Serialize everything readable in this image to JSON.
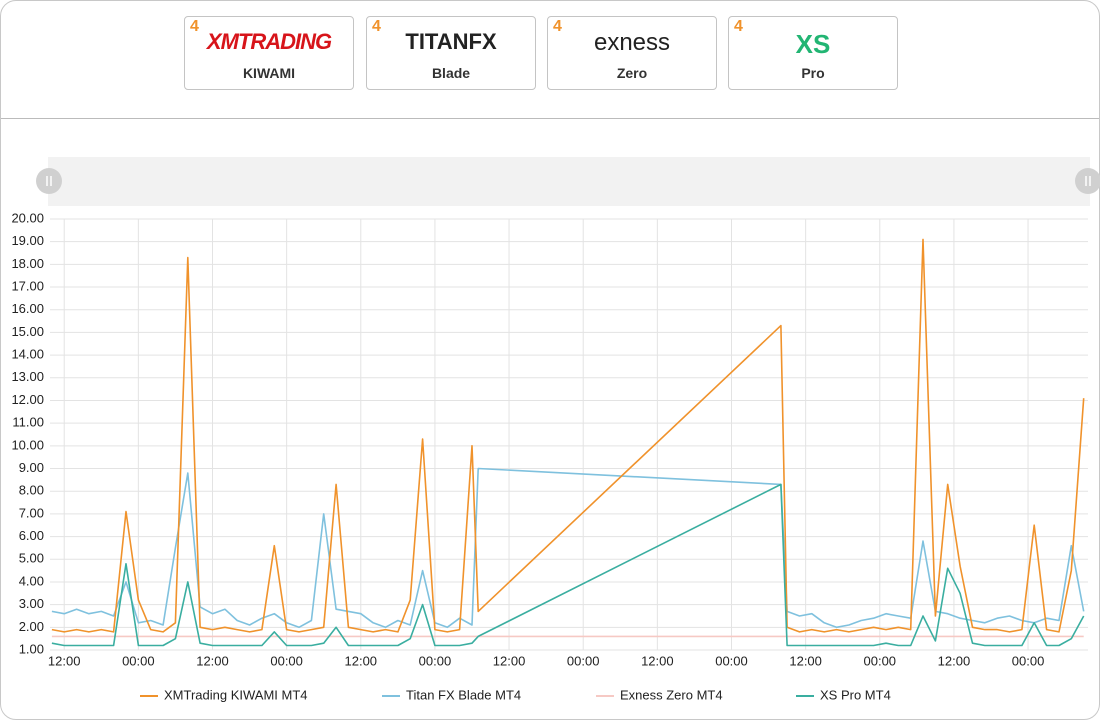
{
  "tabs": [
    {
      "badge": "4",
      "logo": "XMTRADING",
      "label": "KIWAMI"
    },
    {
      "badge": "4",
      "logo": "TITANFX",
      "label": "Blade"
    },
    {
      "badge": "4",
      "logo": "exness",
      "label": "Zero"
    },
    {
      "badge": "4",
      "logo": "XS",
      "label": "Pro"
    }
  ],
  "chart_data": {
    "type": "line",
    "x": [
      10,
      12,
      14,
      16,
      18,
      20,
      22,
      24,
      26,
      28,
      30,
      32,
      34,
      36,
      38,
      40,
      42,
      44,
      46,
      48,
      50,
      52,
      54,
      56,
      58,
      60,
      62,
      64,
      66,
      68,
      70,
      72,
      74,
      76,
      78,
      79,
      128,
      129,
      131,
      133,
      135,
      137,
      139,
      141,
      143,
      145,
      147,
      149,
      151,
      153,
      155,
      157,
      159,
      161,
      163,
      165,
      167,
      169,
      171,
      173,
      175,
      177
    ],
    "xlim": [
      9.7,
      177.7
    ],
    "xticks": [
      {
        "value": 12,
        "label": "12:00"
      },
      {
        "value": 24,
        "label": "00:00"
      },
      {
        "value": 36,
        "label": "12:00"
      },
      {
        "value": 48,
        "label": "00:00"
      },
      {
        "value": 60,
        "label": "12:00"
      },
      {
        "value": 72,
        "label": "00:00"
      },
      {
        "value": 84,
        "label": "12:00"
      },
      {
        "value": 96,
        "label": "00:00"
      },
      {
        "value": 108,
        "label": "12:00"
      },
      {
        "value": 120,
        "label": "00:00"
      },
      {
        "value": 132,
        "label": "12:00"
      },
      {
        "value": 144,
        "label": "00:00"
      },
      {
        "value": 156,
        "label": "12:00"
      },
      {
        "value": 168,
        "label": "00:00"
      }
    ],
    "ylim": [
      1,
      20
    ],
    "yticks": [
      {
        "value": 1,
        "label": "1.00"
      },
      {
        "value": 2,
        "label": "2.00"
      },
      {
        "value": 3,
        "label": "3.00"
      },
      {
        "value": 4,
        "label": "4.00"
      },
      {
        "value": 5,
        "label": "5.00"
      },
      {
        "value": 6,
        "label": "6.00"
      },
      {
        "value": 7,
        "label": "7.00"
      },
      {
        "value": 8,
        "label": "8.00"
      },
      {
        "value": 9,
        "label": "9.00"
      },
      {
        "value": 10,
        "label": "10.00"
      },
      {
        "value": 11,
        "label": "11.00"
      },
      {
        "value": 12,
        "label": "12.00"
      },
      {
        "value": 13,
        "label": "13.00"
      },
      {
        "value": 14,
        "label": "14.00"
      },
      {
        "value": 15,
        "label": "15.00"
      },
      {
        "value": 16,
        "label": "16.00"
      },
      {
        "value": 17,
        "label": "17.00"
      },
      {
        "value": 18,
        "label": "18.00"
      },
      {
        "value": 19,
        "label": "19.00"
      },
      {
        "value": 20,
        "label": "20.00"
      }
    ],
    "grid": true,
    "series": [
      {
        "name": "XMTrading KIWAMI MT4",
        "color": "#f0922b",
        "values": [
          1.9,
          1.8,
          1.9,
          1.8,
          1.9,
          1.8,
          7.1,
          3.2,
          1.9,
          1.8,
          2.2,
          18.3,
          2.0,
          1.9,
          2.0,
          1.9,
          1.8,
          1.9,
          5.6,
          1.9,
          1.8,
          1.9,
          2.0,
          8.3,
          2.0,
          1.9,
          1.8,
          1.9,
          1.8,
          3.2,
          10.3,
          1.9,
          1.8,
          1.9,
          10.0,
          2.7,
          15.3,
          2.0,
          1.8,
          1.9,
          1.8,
          1.9,
          1.8,
          1.9,
          2.0,
          1.9,
          2.0,
          1.9,
          19.1,
          2.5,
          8.3,
          4.7,
          2.0,
          1.9,
          1.9,
          1.8,
          1.9,
          6.5,
          1.9,
          1.8,
          4.5,
          12.1
        ]
      },
      {
        "name": "Titan FX Blade MT4",
        "color": "#7fc1de",
        "values": [
          2.7,
          2.6,
          2.8,
          2.6,
          2.7,
          2.5,
          4.0,
          2.2,
          2.3,
          2.1,
          5.5,
          8.8,
          2.9,
          2.6,
          2.8,
          2.3,
          2.1,
          2.4,
          2.6,
          2.2,
          2.0,
          2.3,
          7.0,
          2.8,
          2.7,
          2.6,
          2.2,
          2.0,
          2.3,
          2.1,
          4.5,
          2.2,
          2.0,
          2.4,
          2.1,
          9.0,
          8.3,
          2.7,
          2.5,
          2.6,
          2.2,
          2.0,
          2.1,
          2.3,
          2.4,
          2.6,
          2.5,
          2.4,
          5.8,
          2.7,
          2.6,
          2.4,
          2.3,
          2.2,
          2.4,
          2.5,
          2.3,
          2.2,
          2.4,
          2.3,
          5.6,
          2.7
        ]
      },
      {
        "name": "Exness Zero MT4",
        "color": "#f6c9c4",
        "values": [
          1.6,
          1.6,
          1.6,
          1.6,
          1.6,
          1.6,
          1.6,
          1.6,
          1.6,
          1.6,
          1.6,
          1.6,
          1.6,
          1.6,
          1.6,
          1.6,
          1.6,
          1.6,
          1.6,
          1.6,
          1.6,
          1.6,
          1.6,
          1.6,
          1.6,
          1.6,
          1.6,
          1.6,
          1.6,
          1.6,
          1.6,
          1.6,
          1.6,
          1.6,
          1.6,
          1.6,
          1.6,
          1.6,
          1.6,
          1.6,
          1.6,
          1.6,
          1.6,
          1.6,
          1.6,
          1.6,
          1.6,
          1.6,
          1.6,
          1.6,
          1.6,
          1.6,
          1.6,
          1.6,
          1.6,
          1.6,
          1.6,
          1.6,
          1.6,
          1.6,
          1.6,
          1.6
        ]
      },
      {
        "name": "XS Pro MT4",
        "color": "#3aaea0",
        "values": [
          1.3,
          1.2,
          1.2,
          1.2,
          1.2,
          1.2,
          4.8,
          1.2,
          1.2,
          1.2,
          1.5,
          4.0,
          1.3,
          1.2,
          1.2,
          1.2,
          1.2,
          1.2,
          1.8,
          1.2,
          1.2,
          1.2,
          1.3,
          2.0,
          1.2,
          1.2,
          1.2,
          1.2,
          1.2,
          1.5,
          3.0,
          1.2,
          1.2,
          1.2,
          1.3,
          1.6,
          8.3,
          1.2,
          1.2,
          1.2,
          1.2,
          1.2,
          1.2,
          1.2,
          1.2,
          1.3,
          1.2,
          1.2,
          2.5,
          1.4,
          4.6,
          3.5,
          1.3,
          1.2,
          1.2,
          1.2,
          1.2,
          2.2,
          1.2,
          1.2,
          1.5,
          2.5
        ]
      }
    ]
  }
}
